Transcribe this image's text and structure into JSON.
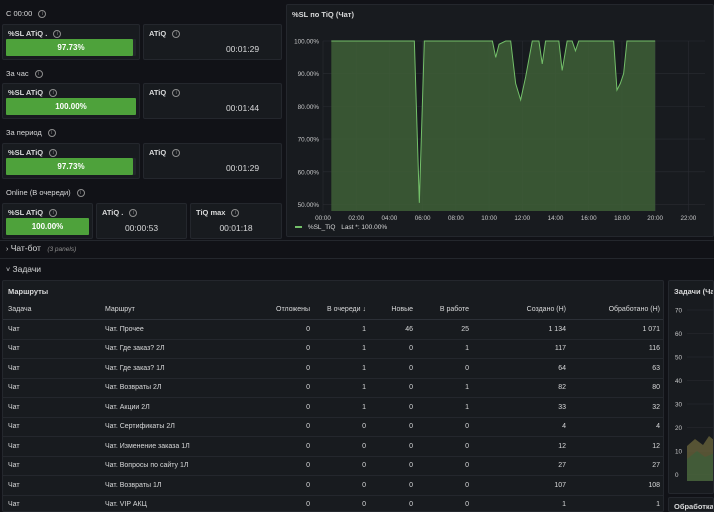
{
  "top": {
    "sec1_title": "С 00:00",
    "sec1_sl": {
      "title": "%SL ATiQ .",
      "value": "97.73%",
      "pct": 97.73
    },
    "sec1_atiq": {
      "title": "ATiQ",
      "value": "00:01:29"
    },
    "sec2_title": "За час",
    "sec2_sl": {
      "title": "%SL ATiQ",
      "value": "100.00%",
      "pct": 100
    },
    "sec2_atiq": {
      "title": "ATiQ",
      "value": "00:01:44"
    },
    "sec3_title": "За период",
    "sec3_sl": {
      "title": "%SL ATiQ",
      "value": "97.73%",
      "pct": 97.73
    },
    "sec3_atiq": {
      "title": "ATiQ",
      "value": "00:01:29"
    },
    "sec4_title": "Online (В очереди)",
    "sec4_sl": {
      "title": "%SL ATiQ",
      "value": "100.00%",
      "pct": 100
    },
    "sec4_atiq": {
      "title": "ATiQ .",
      "value": "00:00:53"
    },
    "sec4_tiq": {
      "title": "TiQ max",
      "value": "00:01:18"
    }
  },
  "chart_panel": {
    "title": "%SL по TiQ (Чат)",
    "legend_label": "%SL_TiQ",
    "legend_last": "Last *: 100.00%"
  },
  "chart_data": {
    "type": "line",
    "title": "%SL по TiQ (Чат)",
    "xlabel": "",
    "ylabel": "",
    "x_ticks": [
      "00:00",
      "02:00",
      "04:00",
      "06:00",
      "08:00",
      "10:00",
      "12:00",
      "14:00",
      "16:00",
      "18:00",
      "20:00",
      "22:00"
    ],
    "y_ticks": [
      "100.00%",
      "90.00%",
      "80.00%",
      "70.00%",
      "60.00%",
      "50.00%"
    ],
    "ylim": [
      48,
      100
    ],
    "xlim": [
      0,
      23
    ],
    "series": [
      {
        "name": "%SL_TiQ",
        "color": "#73bf69",
        "x": [
          0.5,
          5.5,
          5.8,
          6.1,
          8,
          10.2,
          10.4,
          10.6,
          11,
          11.3,
          11.6,
          11.9,
          12.2,
          12.6,
          13,
          13.2,
          13.4,
          13.6,
          13.8,
          14.2,
          14.4,
          14.7,
          15,
          15.2,
          15.4,
          17.5,
          17.7,
          17.9,
          18.1,
          18.3,
          18.5,
          18.7,
          19.3,
          20
        ],
        "y": [
          100,
          100,
          50.5,
          100,
          100,
          100,
          95,
          99,
          100,
          100,
          87,
          82,
          89,
          100,
          100,
          93,
          100,
          100,
          100,
          100,
          91,
          100,
          100,
          97,
          100,
          100,
          85,
          87,
          90,
          100,
          100,
          100,
          100,
          100
        ]
      }
    ]
  },
  "collapsed_row": {
    "title": "Чат-бот",
    "count": "(3 panels)"
  },
  "section_title": "Задачи",
  "table_panel": {
    "title": "Маршруты",
    "headers": [
      "Задача",
      "Маршрут",
      "Отложены",
      "В очереди ↓",
      "Новые",
      "В работе",
      "Создано (Н)",
      "Обработано (Н)"
    ],
    "rows": [
      [
        "Чат",
        "Чат. Прочее",
        "0",
        "1",
        "46",
        "25",
        "1 134",
        "1 071"
      ],
      [
        "Чат",
        "Чат. Где заказ? 2Л",
        "0",
        "1",
        "0",
        "1",
        "117",
        "116"
      ],
      [
        "Чат",
        "Чат. Где заказ? 1Л",
        "0",
        "1",
        "0",
        "0",
        "64",
        "63"
      ],
      [
        "Чат",
        "Чат. Возвраты 2Л",
        "0",
        "1",
        "0",
        "1",
        "82",
        "80"
      ],
      [
        "Чат",
        "Чат. Акции 2Л",
        "0",
        "1",
        "0",
        "1",
        "33",
        "32"
      ],
      [
        "Чат",
        "Чат. Сертификаты 2Л",
        "0",
        "0",
        "0",
        "0",
        "4",
        "4"
      ],
      [
        "Чат",
        "Чат. Изменение заказа 1Л",
        "0",
        "0",
        "0",
        "0",
        "12",
        "12"
      ],
      [
        "Чат",
        "Чат. Вопросы по сайту 1Л",
        "0",
        "0",
        "0",
        "0",
        "27",
        "27"
      ],
      [
        "Чат",
        "Чат. Возвраты 1Л",
        "0",
        "0",
        "0",
        "0",
        "107",
        "108"
      ],
      [
        "Чат",
        "Чат. VIP АКЦ",
        "0",
        "0",
        "0",
        "0",
        "1",
        "1"
      ]
    ]
  },
  "right_panel": {
    "title": "Задачи (Ча",
    "y_ticks": [
      "70",
      "60",
      "50",
      "40",
      "30",
      "20",
      "10",
      "0"
    ]
  },
  "bottom_right_title": "Обработка"
}
